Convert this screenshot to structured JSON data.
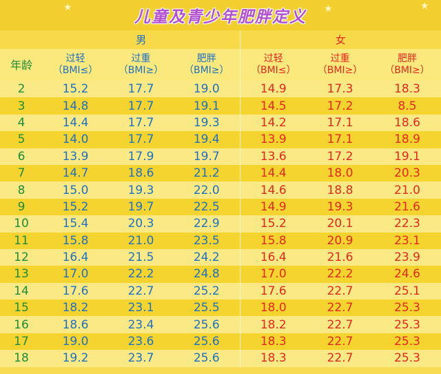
{
  "title": "儿童及青少年肥胖定义",
  "groups": {
    "boys": "男",
    "girls": "女"
  },
  "headers": {
    "age": "年龄",
    "underweight": "过轻",
    "overweight": "过重",
    "obese": "肥胖",
    "bmi_le": "（BMI≤）",
    "bmi_ge": "（BMI≥）"
  },
  "colors": {
    "boy": "#1f6fc0",
    "girl": "#e5281e",
    "age": "#1e8b3a",
    "title": "#b24fd0"
  },
  "rows": [
    {
      "age": "2",
      "m_under": "15.2",
      "m_over": "17.7",
      "m_obese": "19.0",
      "f_under": "14.9",
      "f_over": "17.3",
      "f_obese": "18.3"
    },
    {
      "age": "3",
      "m_under": "14.8",
      "m_over": "17.7",
      "m_obese": "19.1",
      "f_under": "14.5",
      "f_over": "17.2",
      "f_obese": "8.5"
    },
    {
      "age": "4",
      "m_under": "14.4",
      "m_over": "17.7",
      "m_obese": "19.3",
      "f_under": "14.2",
      "f_over": "17.1",
      "f_obese": "18.6"
    },
    {
      "age": "5",
      "m_under": "14.0",
      "m_over": "17.7",
      "m_obese": "19.4",
      "f_under": "13.9",
      "f_over": "17.1",
      "f_obese": "18.9"
    },
    {
      "age": "6",
      "m_under": "13.9",
      "m_over": "17.9",
      "m_obese": "19.7",
      "f_under": "13.6",
      "f_over": "17.2",
      "f_obese": "19.1"
    },
    {
      "age": "7",
      "m_under": "14.7",
      "m_over": "18.6",
      "m_obese": "21.2",
      "f_under": "14.4",
      "f_over": "18.0",
      "f_obese": "20.3"
    },
    {
      "age": "8",
      "m_under": "15.0",
      "m_over": "19.3",
      "m_obese": "22.0",
      "f_under": "14.6",
      "f_over": "18.8",
      "f_obese": "21.0"
    },
    {
      "age": "9",
      "m_under": "15.2",
      "m_over": "19.7",
      "m_obese": "22.5",
      "f_under": "14.9",
      "f_over": "19.3",
      "f_obese": "21.6"
    },
    {
      "age": "10",
      "m_under": "15.4",
      "m_over": "20.3",
      "m_obese": "22.9",
      "f_under": "15.2",
      "f_over": "20.1",
      "f_obese": "22.3"
    },
    {
      "age": "11",
      "m_under": "15.8",
      "m_over": "21.0",
      "m_obese": "23.5",
      "f_under": "15.8",
      "f_over": "20.9",
      "f_obese": "23.1"
    },
    {
      "age": "12",
      "m_under": "16.4",
      "m_over": "21.5",
      "m_obese": "24.2",
      "f_under": "16.4",
      "f_over": "21.6",
      "f_obese": "23.9"
    },
    {
      "age": "13",
      "m_under": "17.0",
      "m_over": "22.2",
      "m_obese": "24.8",
      "f_under": "17.0",
      "f_over": "22.2",
      "f_obese": "24.6"
    },
    {
      "age": "14",
      "m_under": "17.6",
      "m_over": "22.7",
      "m_obese": "25.2",
      "f_under": "17.6",
      "f_over": "22.7",
      "f_obese": "25.1"
    },
    {
      "age": "15",
      "m_under": "18.2",
      "m_over": "23.1",
      "m_obese": "25.5",
      "f_under": "18.0",
      "f_over": "22.7",
      "f_obese": "25.3"
    },
    {
      "age": "16",
      "m_under": "18.6",
      "m_over": "23.4",
      "m_obese": "25.6",
      "f_under": "18.2",
      "f_over": "22.7",
      "f_obese": "25.3"
    },
    {
      "age": "17",
      "m_under": "19.0",
      "m_over": "23.6",
      "m_obese": "25.6",
      "f_under": "18.3",
      "f_over": "22.7",
      "f_obese": "25.3"
    },
    {
      "age": "18",
      "m_under": "19.2",
      "m_over": "23.7",
      "m_obese": "25.6",
      "f_under": "18.3",
      "f_over": "22.7",
      "f_obese": "25.3"
    }
  ]
}
